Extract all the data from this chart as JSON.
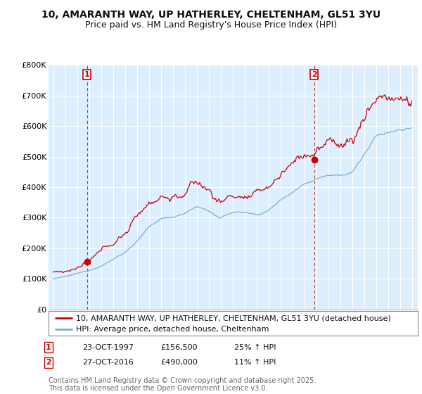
{
  "title_line1": "10, AMARANTH WAY, UP HATHERLEY, CHELTENHAM, GL51 3YU",
  "title_line2": "Price paid vs. HM Land Registry's House Price Index (HPI)",
  "ylim": [
    0,
    800000
  ],
  "yticks": [
    0,
    100000,
    200000,
    300000,
    400000,
    500000,
    600000,
    700000,
    800000
  ],
  "ytick_labels": [
    "£0",
    "£100K",
    "£200K",
    "£300K",
    "£400K",
    "£500K",
    "£600K",
    "£700K",
    "£800K"
  ],
  "year_start": 1995,
  "year_end": 2025,
  "sale1_year": 1997.81,
  "sale1_price": 156500,
  "sale2_year": 2016.82,
  "sale2_price": 490000,
  "line_color_property": "#cc0000",
  "line_color_hpi": "#7bafd4",
  "chart_bg": "#ddeeff",
  "dot_color_property": "#cc0000",
  "vline_color": "#cc0000",
  "background_color": "#ffffff",
  "legend_label_property": "10, AMARANTH WAY, UP HATHERLEY, CHELTENHAM, GL51 3YU (detached house)",
  "legend_label_hpi": "HPI: Average price, detached house, Cheltenham",
  "footer_text": "Contains HM Land Registry data © Crown copyright and database right 2025.\nThis data is licensed under the Open Government Licence v3.0.",
  "title_fontsize": 10,
  "subtitle_fontsize": 9,
  "axis_fontsize": 8,
  "legend_fontsize": 8,
  "footer_fontsize": 7,
  "sale1_date": "23-OCT-1997",
  "sale1_hpi_pct": "25%",
  "sale2_date": "27-OCT-2016",
  "sale2_hpi_pct": "11%"
}
